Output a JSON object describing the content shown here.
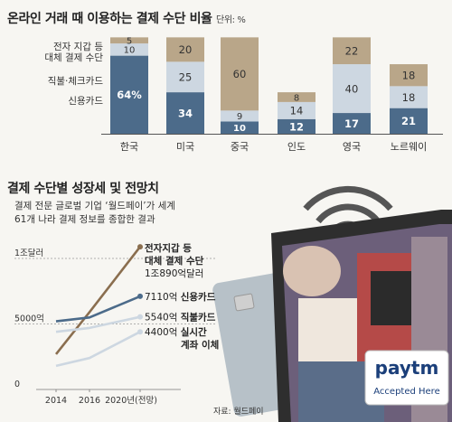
{
  "colors": {
    "credit": "#4c6b8a",
    "debit": "#cdd7e1",
    "ewallet": "#b9a689",
    "ewallet_line": "#8a6e4f",
    "bg": "#f7f6f2"
  },
  "chart_data": [
    {
      "type": "bar",
      "title": "온라인 거래 때 이용하는 결제 수단 비율",
      "unit_label": "단위: %",
      "categories": [
        "한국",
        "미국",
        "중국",
        "인도",
        "영국",
        "노르웨이"
      ],
      "series": [
        {
          "name": "신용카드",
          "values": [
            64,
            34,
            10,
            12,
            17,
            21
          ],
          "labels": [
            "64%",
            "34",
            "10",
            "12",
            "17",
            "21"
          ]
        },
        {
          "name": "직불·체크카드",
          "values": [
            10,
            25,
            9,
            14,
            40,
            18
          ]
        },
        {
          "name": "전자 지갑 등 대체 결제 수단",
          "values": [
            5,
            20,
            60,
            8,
            22,
            18
          ]
        }
      ],
      "legend_text": {
        "credit": "신용카드",
        "debit": "직불·체크카드",
        "ewallet_line1": "전자 지갑 등",
        "ewallet_line2": "대체 결제 수단"
      }
    },
    {
      "type": "line",
      "title": "결제 수단별 성장세 및 전망치",
      "subtitle_line1": "결제 전문 글로벌 기업 ‘월드페이’가 세계",
      "subtitle_line2": "61개 나라 결제 정보를 종합한 결과",
      "x": [
        "2014",
        "2016",
        "2020년(전망)"
      ],
      "y_ticks": [
        "1조달러",
        "5000억",
        "0"
      ],
      "ylim": [
        0,
        10000
      ],
      "series": [
        {
          "name": "전자지갑 등 대체 결제 수단",
          "values": [
            2700,
            5900,
            10890
          ],
          "value_label": "1조890억달러",
          "label_line1": "전자지갑 등",
          "label_line2": "대체 결제 수단",
          "color_key": "ewallet_line"
        },
        {
          "name": "신용카드",
          "values": [
            5200,
            5500,
            7110
          ],
          "value_label": "7110억",
          "label_line1": "신용카드",
          "color_key": "credit"
        },
        {
          "name": "직불카드",
          "values": [
            4400,
            4700,
            5540
          ],
          "value_label": "5540억",
          "label_line1": "직불카드",
          "color_key": "debit"
        },
        {
          "name": "실시간 계좌 이체",
          "values": [
            1800,
            2400,
            4400
          ],
          "value_label": "4400억",
          "label_line1": "실시간",
          "label_line2": "계좌 이체",
          "color_key": "debit"
        }
      ],
      "source": "자료: 월드페이"
    }
  ],
  "illustration": {
    "card_icon": "credit-card-icon",
    "phone_icon": "smartphone-icon",
    "wifi_icon": "wifi-signal-icon",
    "sign_brand": "paytm",
    "sign_text": "Accepted Here"
  }
}
